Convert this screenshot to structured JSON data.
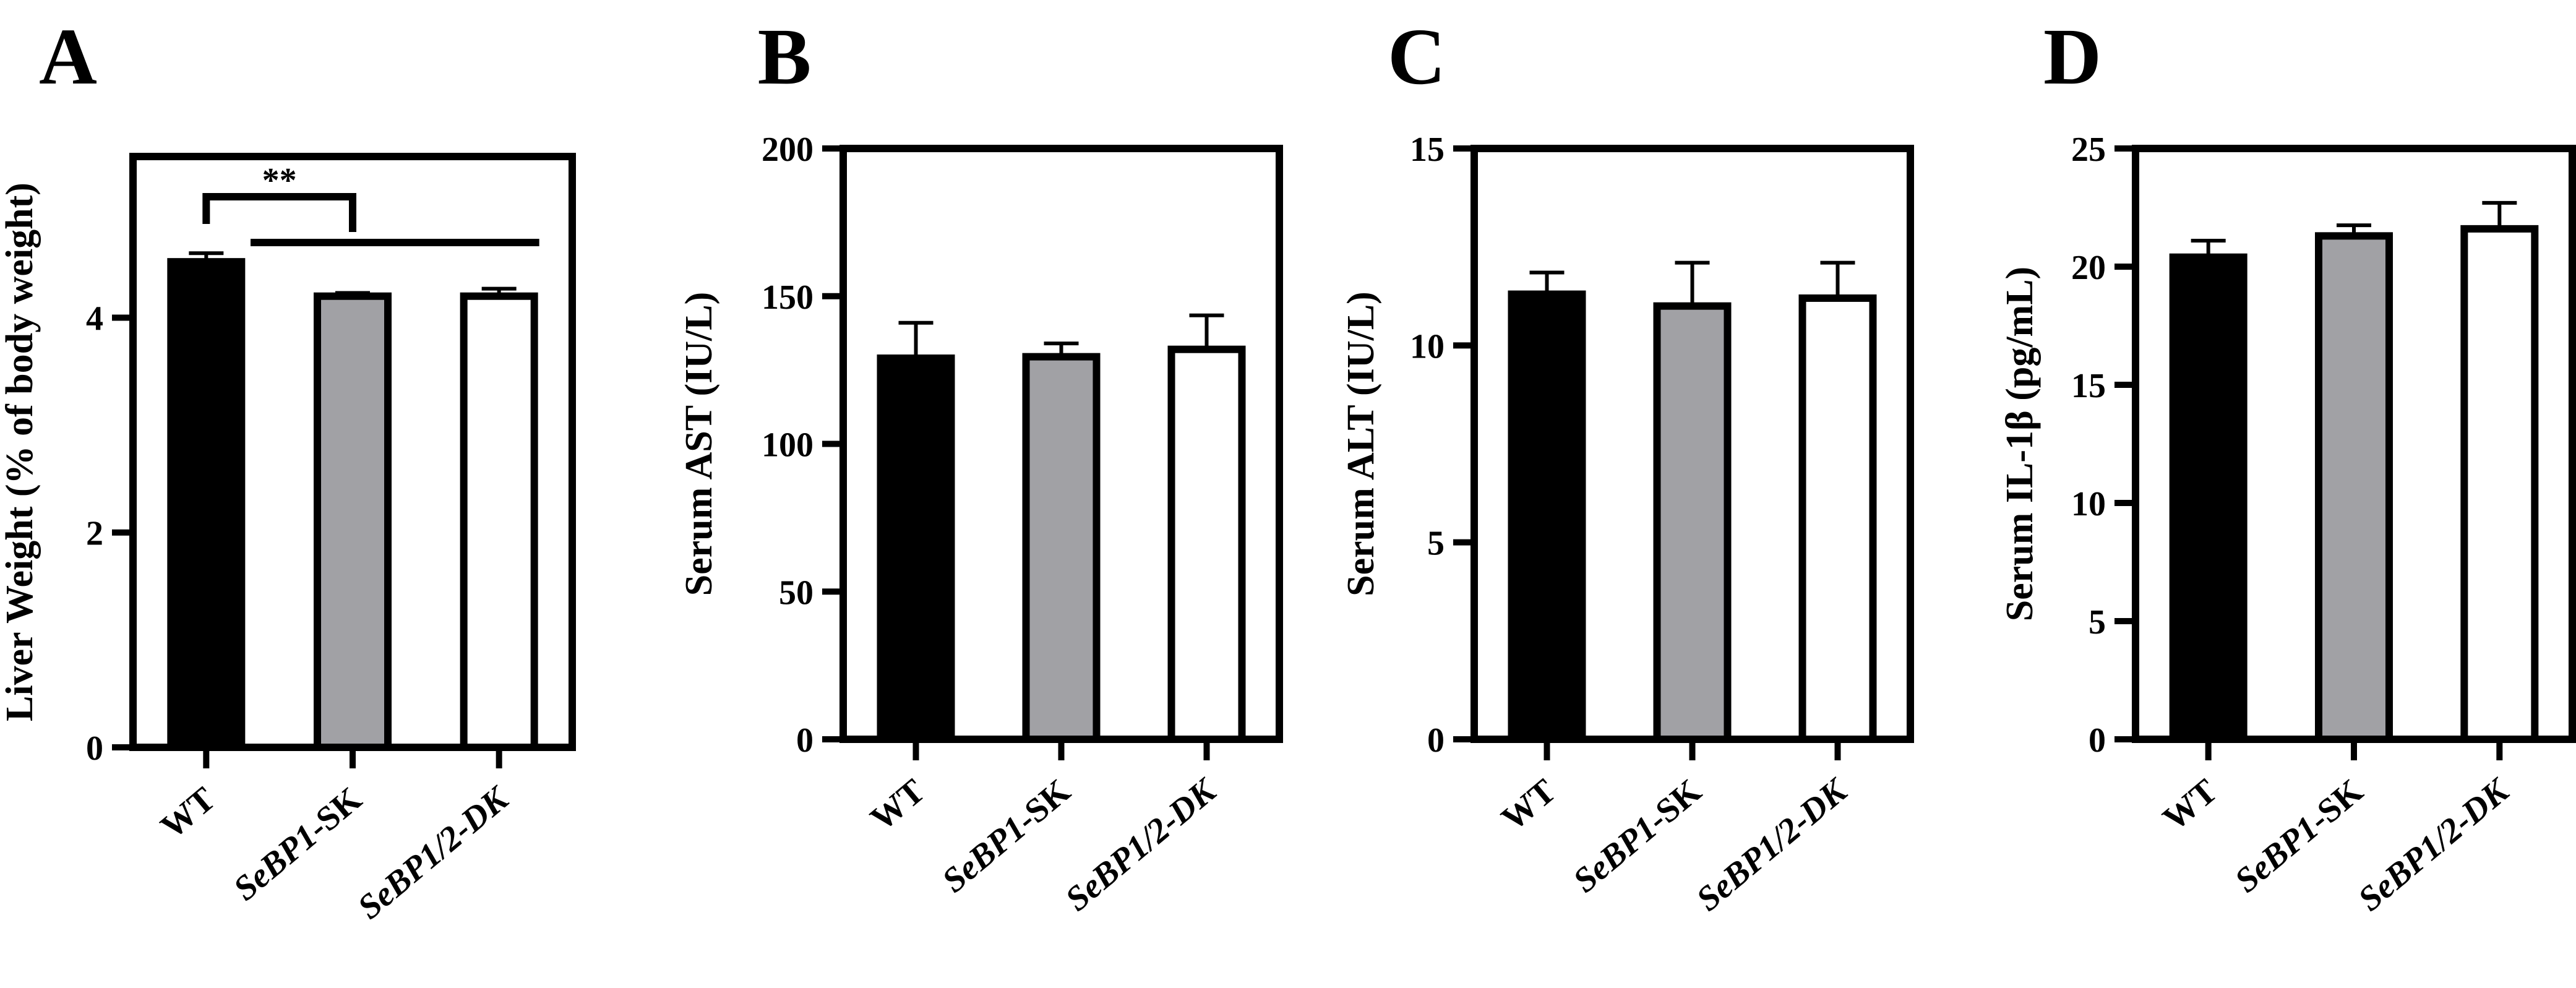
{
  "chart_data": [
    {
      "panel": "A",
      "type": "bar",
      "ylabel": "Liver Weight (% of body weight)",
      "ylim": [
        0,
        5.5
      ],
      "yticks": [
        0,
        2,
        4
      ],
      "categories": [
        {
          "name": "WT",
          "italic": false
        },
        {
          "name": "SeBP1-SK",
          "italic_part": "SeBP1",
          "plain_part": "-SK"
        },
        {
          "name": "SeBP1/2-DK",
          "italic": true
        }
      ],
      "values": [
        4.52,
        4.2,
        4.2
      ],
      "errors": [
        0.08,
        0.03,
        0.07
      ],
      "colors": [
        "#000000",
        "#a1a1a5",
        "#ffffff"
      ],
      "significance": {
        "label": "**",
        "compare": "WT vs SeBP1-SK / SeBP1/2-DK"
      }
    },
    {
      "panel": "B",
      "type": "bar",
      "ylabel": "Serum AST (IU/L)",
      "ylim": [
        0,
        200
      ],
      "yticks": [
        0,
        50,
        100,
        150,
        200
      ],
      "categories": [
        {
          "name": "WT",
          "italic": false
        },
        {
          "name": "SeBP1-SK",
          "italic_part": "SeBP1",
          "plain_part": "-SK"
        },
        {
          "name": "SeBP1/2-DK",
          "italic": true
        }
      ],
      "values": [
        129,
        129.5,
        132
      ],
      "errors": [
        12,
        4.5,
        11.5
      ],
      "colors": [
        "#000000",
        "#a1a1a5",
        "#ffffff"
      ]
    },
    {
      "panel": "C",
      "type": "bar",
      "ylabel": "Serum ALT (IU/L)",
      "ylim": [
        0,
        15
      ],
      "yticks": [
        0,
        5,
        10,
        15
      ],
      "categories": [
        {
          "name": "WT",
          "italic": false
        },
        {
          "name": "SeBP1-SK",
          "italic_part": "SeBP1",
          "plain_part": "-SK"
        },
        {
          "name": "SeBP1/2-DK",
          "italic": true
        }
      ],
      "values": [
        11.3,
        11.0,
        11.2
      ],
      "errors": [
        0.55,
        1.1,
        0.9
      ],
      "colors": [
        "#000000",
        "#a1a1a5",
        "#ffffff"
      ]
    },
    {
      "panel": "D",
      "type": "bar",
      "ylabel": "Serum IL-1β (pg/mL)",
      "ylim": [
        0,
        25
      ],
      "yticks": [
        0,
        5,
        10,
        15,
        20,
        25
      ],
      "categories": [
        {
          "name": "WT",
          "italic": false
        },
        {
          "name": "SeBP1-SK",
          "italic_part": "SeBP1",
          "plain_part": "-SK"
        },
        {
          "name": "SeBP1/2-DK",
          "italic": true
        }
      ],
      "values": [
        20.4,
        21.3,
        21.6
      ],
      "errors": [
        0.7,
        0.45,
        1.1
      ],
      "colors": [
        "#000000",
        "#a1a1a5",
        "#ffffff"
      ]
    }
  ]
}
